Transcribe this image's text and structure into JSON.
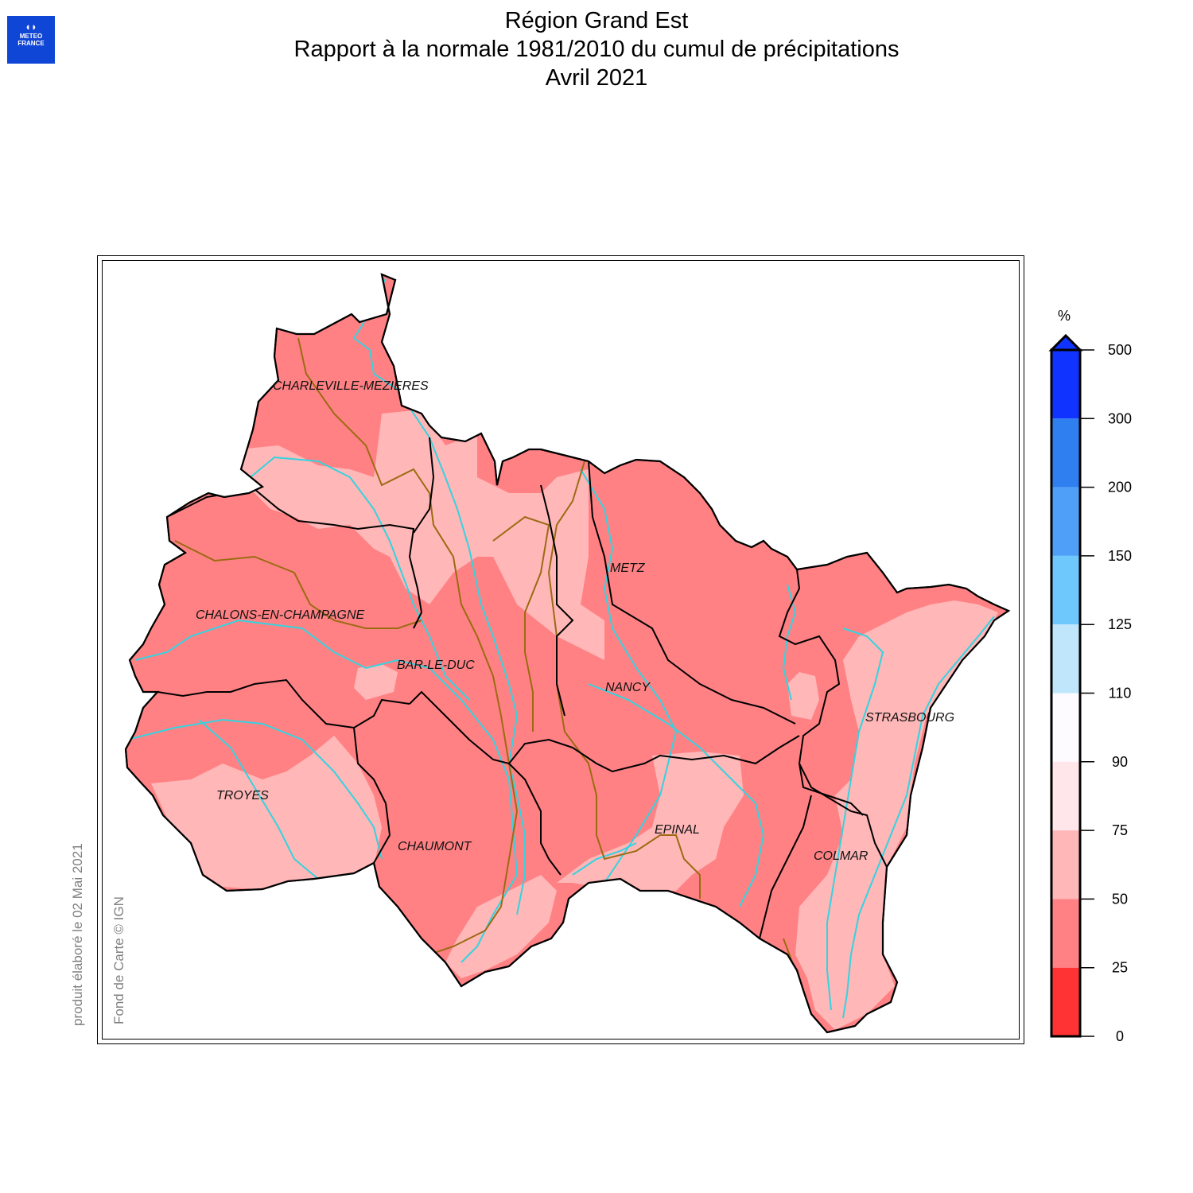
{
  "logo": {
    "glyph": "◖◗",
    "line1": "METEO",
    "line2": "FRANCE"
  },
  "title": {
    "line1": "Région Grand Est",
    "line2": "Rapport à la normale 1981/2010 du cumul de précipitations",
    "line3": "Avril 2021"
  },
  "credits": {
    "produced": "produit élaboré le 02 Mai 2021",
    "basemap": "Fond de Carte © IGN"
  },
  "cities": [
    "CHARLEVILLE-MEZIERES",
    "METZ",
    "CHALONS-EN-CHAMPAGNE",
    "BAR-LE-DUC",
    "NANCY",
    "STRASBOURG",
    "TROYES",
    "CHAUMONT",
    "EPINAL",
    "COLMAR"
  ],
  "legend": {
    "unit": "%",
    "ticks": [
      "500",
      "300",
      "200",
      "150",
      "125",
      "110",
      "90",
      "75",
      "50",
      "25",
      "0"
    ],
    "class_colors": [
      "#1133ff",
      "#2f7ff0",
      "#4f9ff8",
      "#6fc8fc",
      "#bfe6fb",
      "#fdfbff",
      "#ffe6ea",
      "#ffb7b8",
      "#ff8184",
      "#ff3334"
    ],
    "overflow_arrow_color": "#1133ff"
  },
  "map_colors": {
    "class_25_50": "#ff8184",
    "class_50_75": "#ffb7b8",
    "rivers": "#34d3e0",
    "basin_borders": "#9c6a12",
    "department_borders": "#000000"
  }
}
